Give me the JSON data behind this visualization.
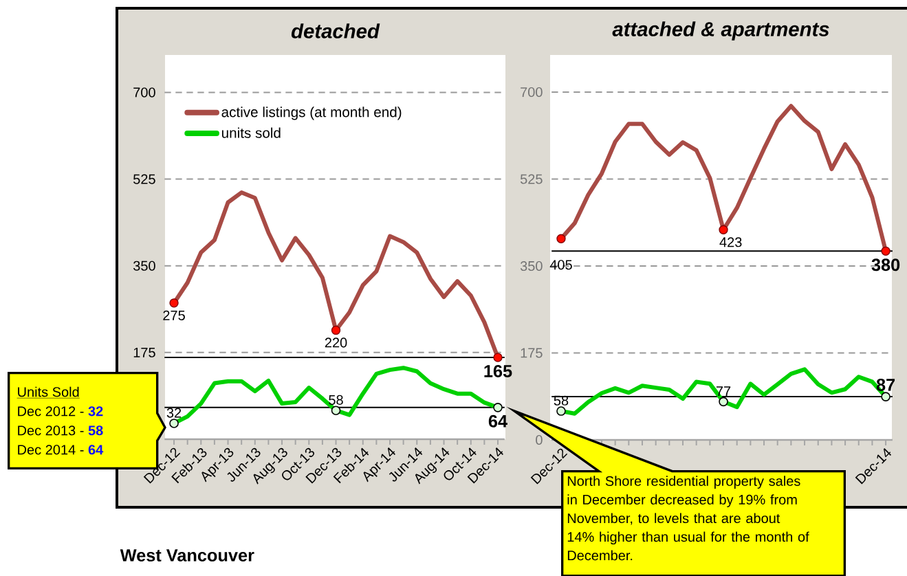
{
  "chart_data": [
    {
      "type": "line",
      "title": "detached",
      "categories": [
        "Dec-12",
        null,
        "Feb-13",
        null,
        "Apr-13",
        null,
        "Jun-13",
        null,
        "Aug-13",
        null,
        "Oct-13",
        null,
        "Dec-13",
        null,
        "Feb-14",
        null,
        "Apr-14",
        null,
        "Jun-14",
        null,
        "Aug-14",
        null,
        "Oct-14",
        null,
        "Dec-14"
      ],
      "series": [
        {
          "name": "active listings (at month end)",
          "color": "#a84b45",
          "values": [
            275,
            316,
            377,
            402,
            478,
            498,
            487,
            417,
            361,
            406,
            372,
            326,
            220,
            256,
            311,
            339,
            410,
            398,
            377,
            324,
            287,
            319,
            290,
            236,
            165
          ],
          "value_labels": [
            "275",
            null,
            null,
            null,
            null,
            null,
            null,
            null,
            null,
            null,
            null,
            null,
            "220",
            null,
            null,
            null,
            null,
            null,
            null,
            null,
            null,
            null,
            null,
            null,
            "165"
          ]
        },
        {
          "name": "units sold",
          "color": "#00d000",
          "values": [
            32,
            46,
            72,
            113,
            117,
            117,
            97,
            118,
            72,
            75,
            104,
            82,
            58,
            49,
            92,
            132,
            140,
            144,
            137,
            113,
            101,
            92,
            92,
            74,
            64
          ],
          "value_labels": [
            "32",
            null,
            null,
            null,
            null,
            null,
            null,
            null,
            null,
            null,
            null,
            null,
            "58",
            null,
            null,
            null,
            null,
            null,
            null,
            null,
            null,
            null,
            null,
            null,
            "64"
          ]
        }
      ],
      "ylim": [
        0,
        700
      ],
      "yticks": [
        175,
        350,
        525,
        700
      ],
      "grid": "y",
      "legend": "top left",
      "ref_lines": [
        {
          "axis": "y",
          "value": 165
        },
        {
          "axis": "y",
          "value": 64
        }
      ],
      "annotations": [
        "West Vancouver",
        "Units Sold",
        "Dec 2012 -",
        "32",
        "Dec 2013 -",
        "58",
        "Dec 2014 -",
        "64"
      ]
    },
    {
      "type": "line",
      "title": "attached & apartments",
      "categories": [
        "Dec-12",
        null,
        null,
        null,
        null,
        null,
        null,
        null,
        null,
        null,
        null,
        null,
        null,
        null,
        null,
        null,
        null,
        null,
        null,
        null,
        null,
        null,
        null,
        null,
        "Dec-14"
      ],
      "series": [
        {
          "color": "#a84b45",
          "values": [
            405,
            436,
            493,
            536,
            600,
            636,
            636,
            600,
            574,
            599,
            583,
            527,
            423,
            467,
            527,
            586,
            641,
            672,
            642,
            620,
            545,
            595,
            554,
            488,
            380
          ],
          "value_labels": [
            "405",
            null,
            null,
            null,
            null,
            null,
            null,
            null,
            null,
            null,
            null,
            null,
            "423",
            null,
            null,
            null,
            null,
            null,
            null,
            null,
            null,
            null,
            null,
            null,
            "380"
          ]
        },
        {
          "color": "#00d000",
          "values": [
            58,
            53,
            76,
            94,
            104,
            95,
            109,
            105,
            101,
            83,
            117,
            113,
            77,
            66,
            113,
            91,
            112,
            133,
            142,
            112,
            95,
            102,
            127,
            117,
            87
          ],
          "value_labels": [
            "58",
            null,
            null,
            null,
            null,
            null,
            null,
            null,
            null,
            null,
            null,
            null,
            "77",
            null,
            null,
            null,
            null,
            null,
            null,
            null,
            null,
            null,
            null,
            null,
            "87"
          ]
        }
      ],
      "ylim": [
        0,
        700
      ],
      "yticks": [
        0,
        175,
        350,
        525,
        700
      ],
      "grid": "y",
      "ref_lines": [
        {
          "axis": "y",
          "value": 380
        },
        {
          "axis": "y",
          "value": 87
        }
      ],
      "annotations": [
        "North Shore residential property sales in December decreased by 19% from November, to levels that are about 14% higher than usual for the month of December."
      ]
    }
  ]
}
